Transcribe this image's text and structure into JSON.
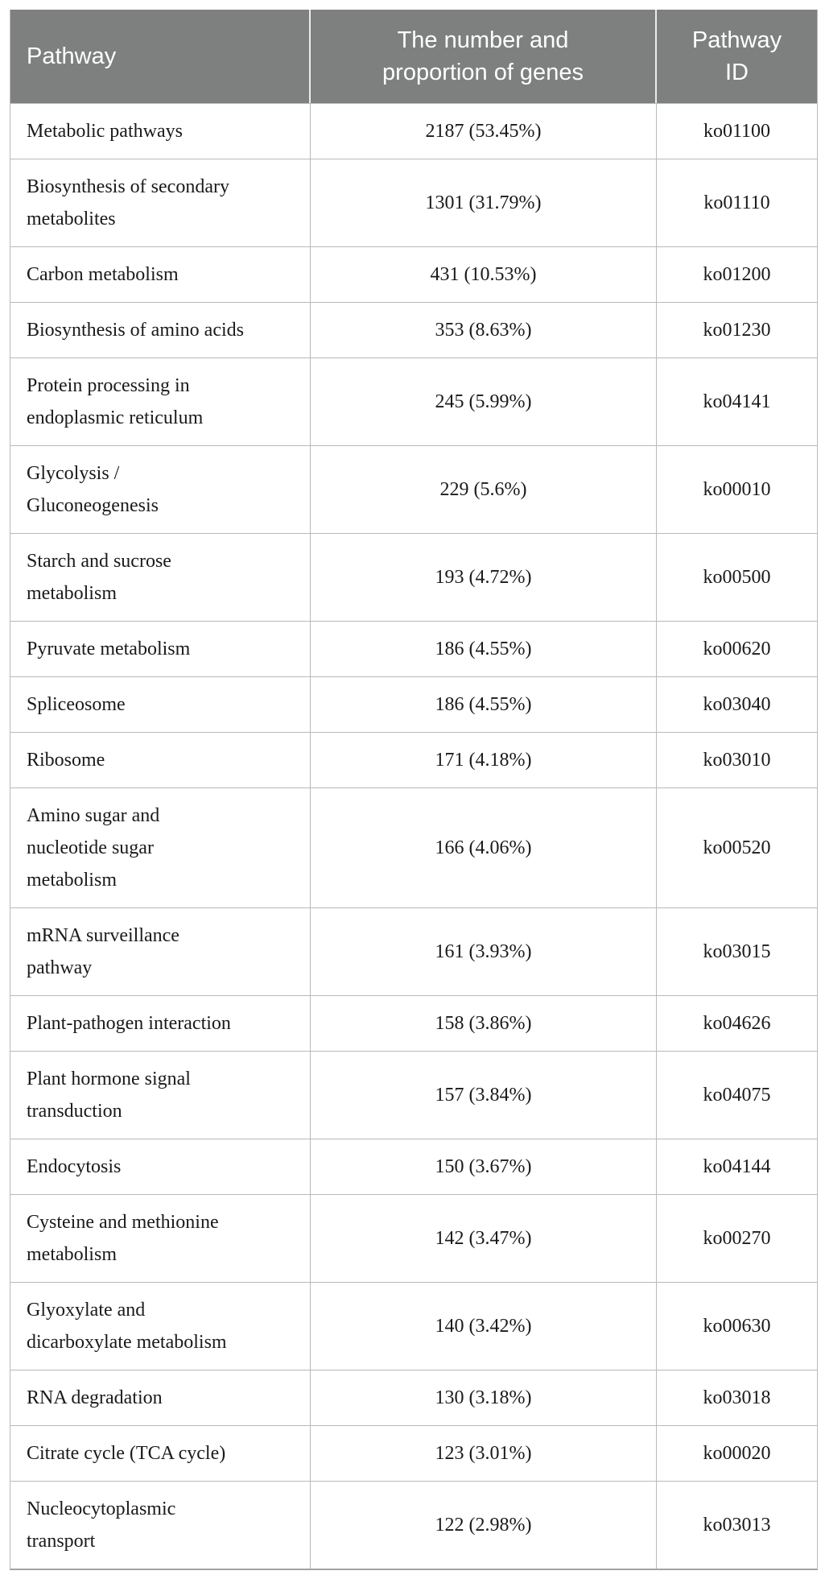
{
  "colors": {
    "header_bg": "#7e807f",
    "header_text": "#ffffff",
    "body_text": "#1a1a1a",
    "grid_line": "#b9b9b9",
    "header_divider": "#ececec"
  },
  "table": {
    "columns": [
      {
        "label": "Pathway"
      },
      {
        "label": "The number and\nproportion of genes"
      },
      {
        "label": "Pathway\nID"
      }
    ],
    "rows": [
      {
        "pathway": "Metabolic pathways",
        "genes": "2187 (53.45%)",
        "id": "ko01100"
      },
      {
        "pathway": "Biosynthesis of secondary\nmetabolites",
        "genes": "1301 (31.79%)",
        "id": "ko01110"
      },
      {
        "pathway": "Carbon metabolism",
        "genes": "431 (10.53%)",
        "id": "ko01200"
      },
      {
        "pathway": "Biosynthesis of amino acids",
        "genes": "353 (8.63%)",
        "id": "ko01230"
      },
      {
        "pathway": "Protein processing in\nendoplasmic reticulum",
        "genes": "245 (5.99%)",
        "id": "ko04141"
      },
      {
        "pathway": "Glycolysis /\nGluconeogenesis",
        "genes": "229 (5.6%)",
        "id": "ko00010"
      },
      {
        "pathway": "Starch and sucrose\nmetabolism",
        "genes": "193 (4.72%)",
        "id": "ko00500"
      },
      {
        "pathway": "Pyruvate metabolism",
        "genes": "186 (4.55%)",
        "id": "ko00620"
      },
      {
        "pathway": "Spliceosome",
        "genes": "186 (4.55%)",
        "id": "ko03040"
      },
      {
        "pathway": "Ribosome",
        "genes": "171 (4.18%)",
        "id": "ko03010"
      },
      {
        "pathway": "Amino sugar and\nnucleotide sugar\nmetabolism",
        "genes": "166 (4.06%)",
        "id": "ko00520"
      },
      {
        "pathway": "mRNA surveillance\npathway",
        "genes": "161 (3.93%)",
        "id": "ko03015"
      },
      {
        "pathway": "Plant-pathogen interaction",
        "genes": "158 (3.86%)",
        "id": "ko04626"
      },
      {
        "pathway": "Plant hormone signal\ntransduction",
        "genes": "157 (3.84%)",
        "id": "ko04075"
      },
      {
        "pathway": "Endocytosis",
        "genes": "150 (3.67%)",
        "id": "ko04144"
      },
      {
        "pathway": "Cysteine and methionine\nmetabolism",
        "genes": "142 (3.47%)",
        "id": "ko00270"
      },
      {
        "pathway": "Glyoxylate and\ndicarboxylate metabolism",
        "genes": "140 (3.42%)",
        "id": "ko00630"
      },
      {
        "pathway": "RNA degradation",
        "genes": "130 (3.18%)",
        "id": "ko03018"
      },
      {
        "pathway": "Citrate cycle (TCA cycle)",
        "genes": "123 (3.01%)",
        "id": "ko00020"
      },
      {
        "pathway": "Nucleocytoplasmic\ntransport",
        "genes": "122 (2.98%)",
        "id": "ko03013"
      }
    ]
  },
  "chart_data": {
    "type": "table",
    "columns": [
      "Pathway",
      "The number and proportion of genes",
      "Pathway ID"
    ],
    "rows": [
      [
        "Metabolic pathways",
        "2187 (53.45%)",
        "ko01100"
      ],
      [
        "Biosynthesis of secondary metabolites",
        "1301 (31.79%)",
        "ko01110"
      ],
      [
        "Carbon metabolism",
        "431 (10.53%)",
        "ko01200"
      ],
      [
        "Biosynthesis of amino acids",
        "353 (8.63%)",
        "ko01230"
      ],
      [
        "Protein processing in endoplasmic reticulum",
        "245 (5.99%)",
        "ko04141"
      ],
      [
        "Glycolysis / Gluconeogenesis",
        "229 (5.6%)",
        "ko00010"
      ],
      [
        "Starch and sucrose metabolism",
        "193 (4.72%)",
        "ko00500"
      ],
      [
        "Pyruvate metabolism",
        "186 (4.55%)",
        "ko00620"
      ],
      [
        "Spliceosome",
        "186 (4.55%)",
        "ko03040"
      ],
      [
        "Ribosome",
        "171 (4.18%)",
        "ko03010"
      ],
      [
        "Amino sugar and nucleotide sugar metabolism",
        "166 (4.06%)",
        "ko00520"
      ],
      [
        "mRNA surveillance pathway",
        "161 (3.93%)",
        "ko03015"
      ],
      [
        "Plant-pathogen interaction",
        "158 (3.86%)",
        "ko04626"
      ],
      [
        "Plant hormone signal transduction",
        "157 (3.84%)",
        "ko04075"
      ],
      [
        "Endocytosis",
        "150 (3.67%)",
        "ko04144"
      ],
      [
        "Cysteine and methionine metabolism",
        "142 (3.47%)",
        "ko00270"
      ],
      [
        "Glyoxylate and dicarboxylate metabolism",
        "140 (3.42%)",
        "ko00630"
      ],
      [
        "RNA degradation",
        "130 (3.18%)",
        "ko03018"
      ],
      [
        "Citrate cycle (TCA cycle)",
        "123 (3.01%)",
        "ko00020"
      ],
      [
        "Nucleocytoplasmic transport",
        "122 (2.98%)",
        "ko03013"
      ]
    ]
  }
}
